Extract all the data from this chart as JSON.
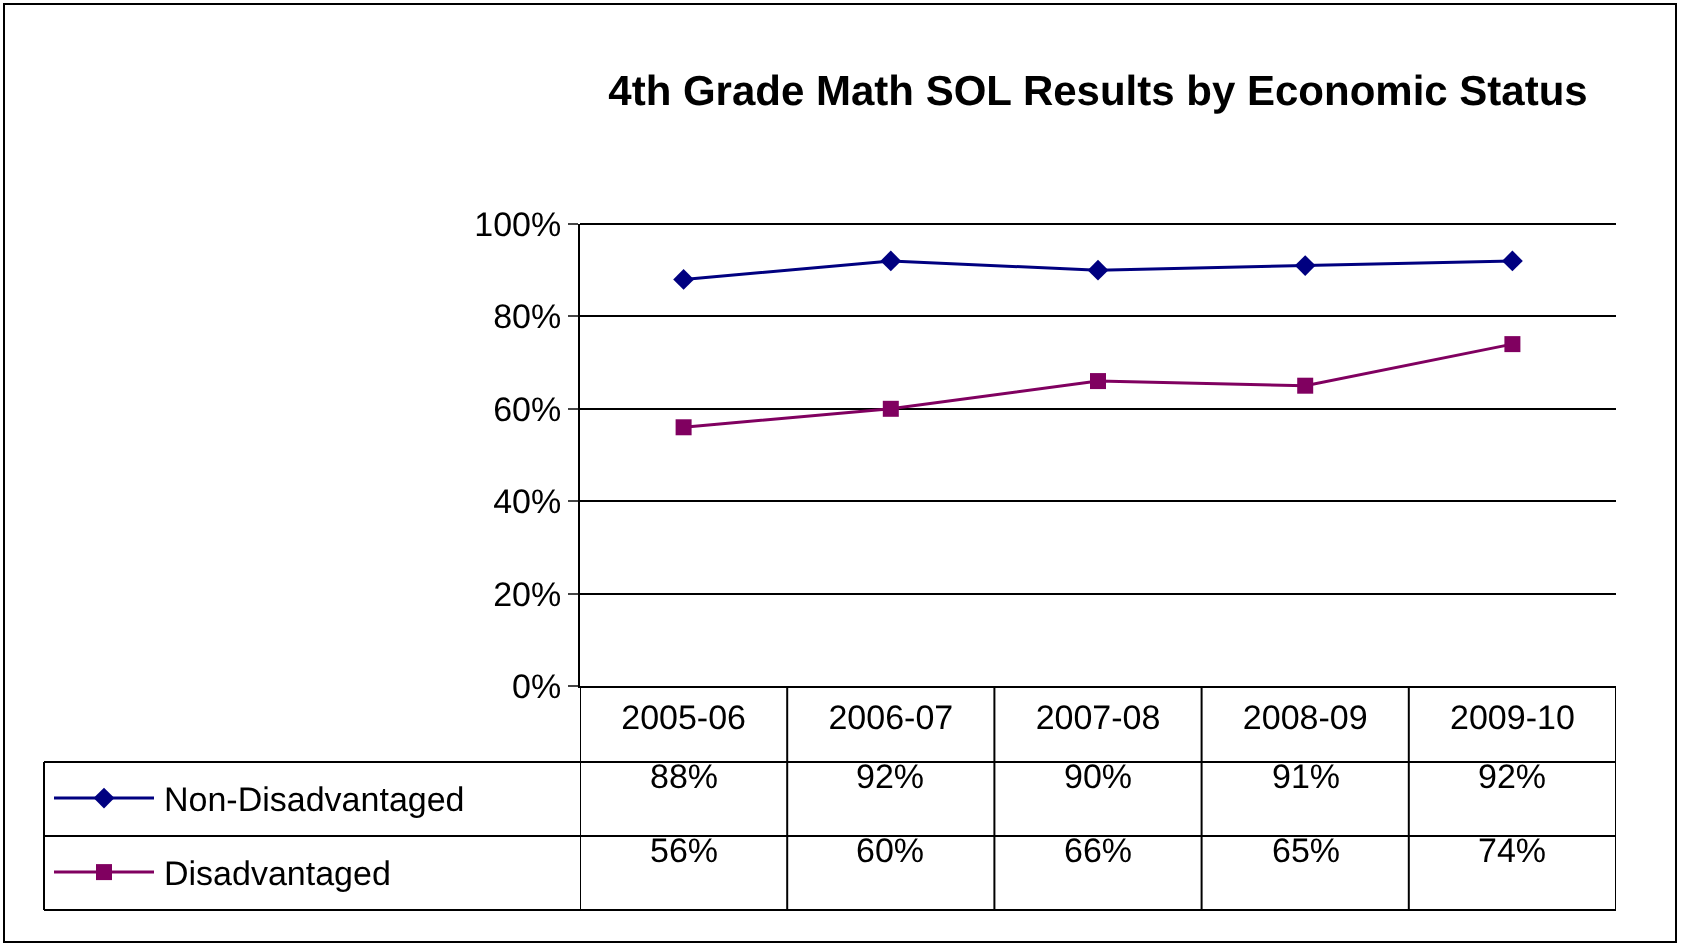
{
  "chart_data": {
    "type": "line",
    "title": "4th Grade Math SOL Results by Economic Status",
    "categories": [
      "2005-06",
      "2006-07",
      "2007-08",
      "2008-09",
      "2009-10"
    ],
    "series": [
      {
        "name": "Non-Disadvantaged",
        "color": "#000080",
        "marker": "diamond",
        "values": [
          88,
          92,
          90,
          91,
          92
        ],
        "value_labels": [
          "88%",
          "92%",
          "90%",
          "91%",
          "92%"
        ]
      },
      {
        "name": "Disadvantaged",
        "color": "#800060",
        "marker": "square",
        "values": [
          56,
          60,
          66,
          65,
          74
        ],
        "value_labels": [
          "56%",
          "60%",
          "66%",
          "65%",
          "74%"
        ]
      }
    ],
    "ylim": [
      0,
      100
    ],
    "yticks": [
      {
        "value": 0,
        "label": "0%"
      },
      {
        "value": 20,
        "label": "20%"
      },
      {
        "value": 40,
        "label": "40%"
      },
      {
        "value": 60,
        "label": "60%"
      },
      {
        "value": 80,
        "label": "80%"
      },
      {
        "value": 100,
        "label": "100%"
      }
    ],
    "grid": "y",
    "legend": "bottom left",
    "line_style": "solid"
  }
}
